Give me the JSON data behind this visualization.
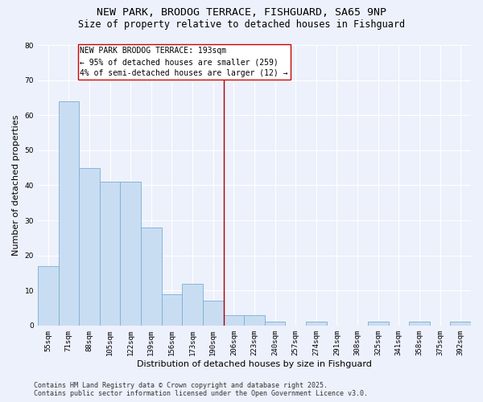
{
  "title": "NEW PARK, BRODOG TERRACE, FISHGUARD, SA65 9NP",
  "subtitle": "Size of property relative to detached houses in Fishguard",
  "xlabel": "Distribution of detached houses by size in Fishguard",
  "ylabel": "Number of detached properties",
  "categories": [
    "55sqm",
    "71sqm",
    "88sqm",
    "105sqm",
    "122sqm",
    "139sqm",
    "156sqm",
    "173sqm",
    "190sqm",
    "206sqm",
    "223sqm",
    "240sqm",
    "257sqm",
    "274sqm",
    "291sqm",
    "308sqm",
    "325sqm",
    "341sqm",
    "358sqm",
    "375sqm",
    "392sqm"
  ],
  "values": [
    17,
    64,
    45,
    41,
    41,
    28,
    9,
    12,
    7,
    3,
    3,
    1,
    0,
    1,
    0,
    0,
    1,
    0,
    1,
    0,
    1
  ],
  "bar_color": "#c9ddf2",
  "bar_edge_color": "#7aafd4",
  "ylim": [
    0,
    80
  ],
  "yticks": [
    0,
    10,
    20,
    30,
    40,
    50,
    60,
    70,
    80
  ],
  "vline_x": 8.5,
  "annotation_line1": "NEW PARK BRODOG TERRACE: 193sqm",
  "annotation_line2": "← 95% of detached houses are smaller (259)",
  "annotation_line3": "4% of semi-detached houses are larger (12) →",
  "annotation_box_color": "#ffffff",
  "annotation_box_edge_color": "#cc0000",
  "footer_line1": "Contains HM Land Registry data © Crown copyright and database right 2025.",
  "footer_line2": "Contains public sector information licensed under the Open Government Licence v3.0.",
  "bg_color": "#edf1fb",
  "plot_bg_color": "#edf1fb",
  "grid_color": "#ffffff",
  "vline_color": "#aa0000",
  "title_fontsize": 9.5,
  "subtitle_fontsize": 8.5,
  "tick_fontsize": 6.5,
  "ylabel_fontsize": 8,
  "xlabel_fontsize": 8,
  "footer_fontsize": 6,
  "annot_fontsize": 7
}
